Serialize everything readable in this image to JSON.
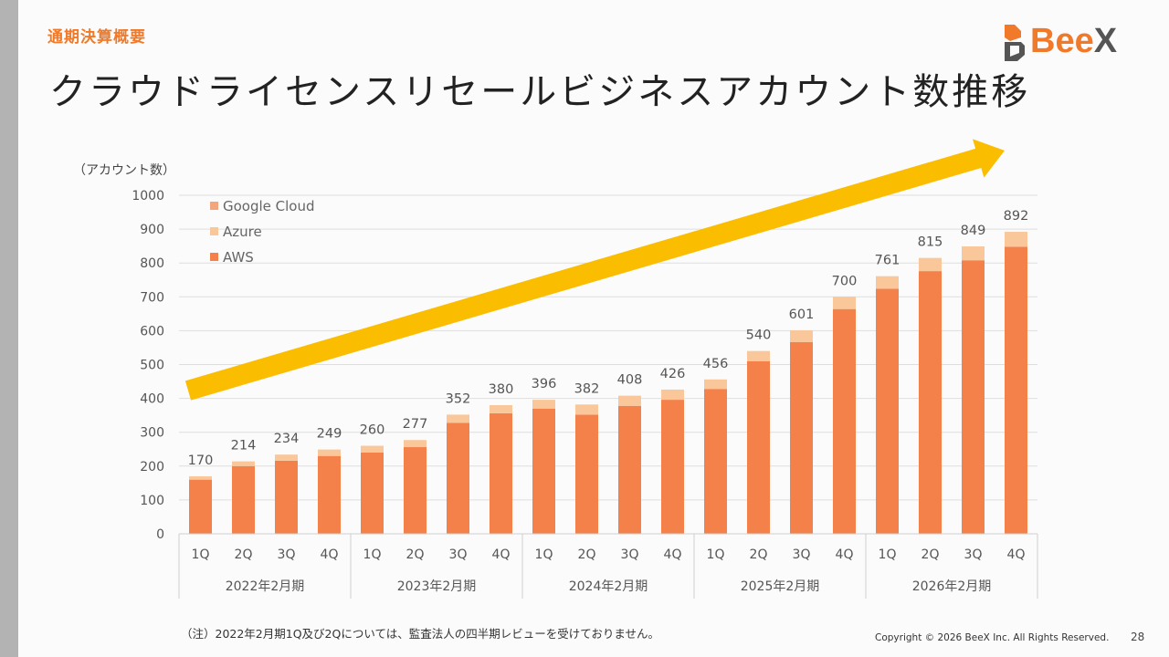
{
  "header": {
    "section_label": "通期決算概要",
    "title": "クラウドライセンスリセールビジネスアカウント数推移",
    "logo_text_main": "Bee",
    "logo_text_x": "X"
  },
  "colors": {
    "aws": "#f4804a",
    "azure": "#f9c79a",
    "google_cloud": "#f3a57d",
    "arrow": "#fbbd00",
    "accent": "#f07a2a"
  },
  "chart_data": {
    "type": "bar",
    "stacked": true,
    "y_unit_label": "（アカウント数）",
    "ylim": [
      0,
      1000
    ],
    "y_ticks": [
      0,
      100,
      200,
      300,
      400,
      500,
      600,
      700,
      800,
      900,
      1000
    ],
    "grid": true,
    "legend_position": "top-left",
    "categories": [
      "1Q",
      "2Q",
      "3Q",
      "4Q",
      "1Q",
      "2Q",
      "3Q",
      "4Q",
      "1Q",
      "2Q",
      "3Q",
      "4Q",
      "1Q",
      "2Q",
      "3Q",
      "4Q",
      "1Q",
      "2Q",
      "3Q",
      "4Q"
    ],
    "groups": [
      {
        "label": "2022年2月期",
        "start": 0,
        "count": 4
      },
      {
        "label": "2023年2月期",
        "start": 4,
        "count": 4
      },
      {
        "label": "2024年2月期",
        "start": 8,
        "count": 4
      },
      {
        "label": "2025年2月期",
        "start": 12,
        "count": 4
      },
      {
        "label": "2026年2月期",
        "start": 16,
        "count": 4
      }
    ],
    "series": [
      {
        "name": "AWS",
        "color_key": "aws",
        "values": [
          160,
          200,
          216,
          230,
          240,
          256,
          328,
          356,
          370,
          352,
          378,
          396,
          428,
          510,
          566,
          664,
          724,
          776,
          808,
          848
        ]
      },
      {
        "name": "Azure",
        "color_key": "azure",
        "values": [
          10,
          14,
          18,
          19,
          20,
          21,
          24,
          24,
          26,
          30,
          30,
          30,
          28,
          30,
          35,
          36,
          37,
          39,
          41,
          44
        ]
      },
      {
        "name": "Google Cloud",
        "color_key": "google_cloud",
        "values": [
          0,
          0,
          0,
          0,
          0,
          0,
          0,
          0,
          0,
          0,
          0,
          0,
          0,
          0,
          0,
          0,
          0,
          0,
          0,
          0
        ]
      }
    ],
    "totals": [
      170,
      214,
      234,
      249,
      260,
      277,
      352,
      380,
      396,
      382,
      408,
      426,
      456,
      540,
      601,
      700,
      761,
      815,
      849,
      892
    ],
    "legend_order": [
      "Google Cloud",
      "Azure",
      "AWS"
    ],
    "trend_arrow": true
  },
  "footer": {
    "note": "（注）2022年2月期1Q及び2Qについては、監査法人の四半期レビューを受けておりません。",
    "copyright": "Copyright © 2026 BeeX Inc. All Rights Reserved.",
    "page_number": "28"
  }
}
